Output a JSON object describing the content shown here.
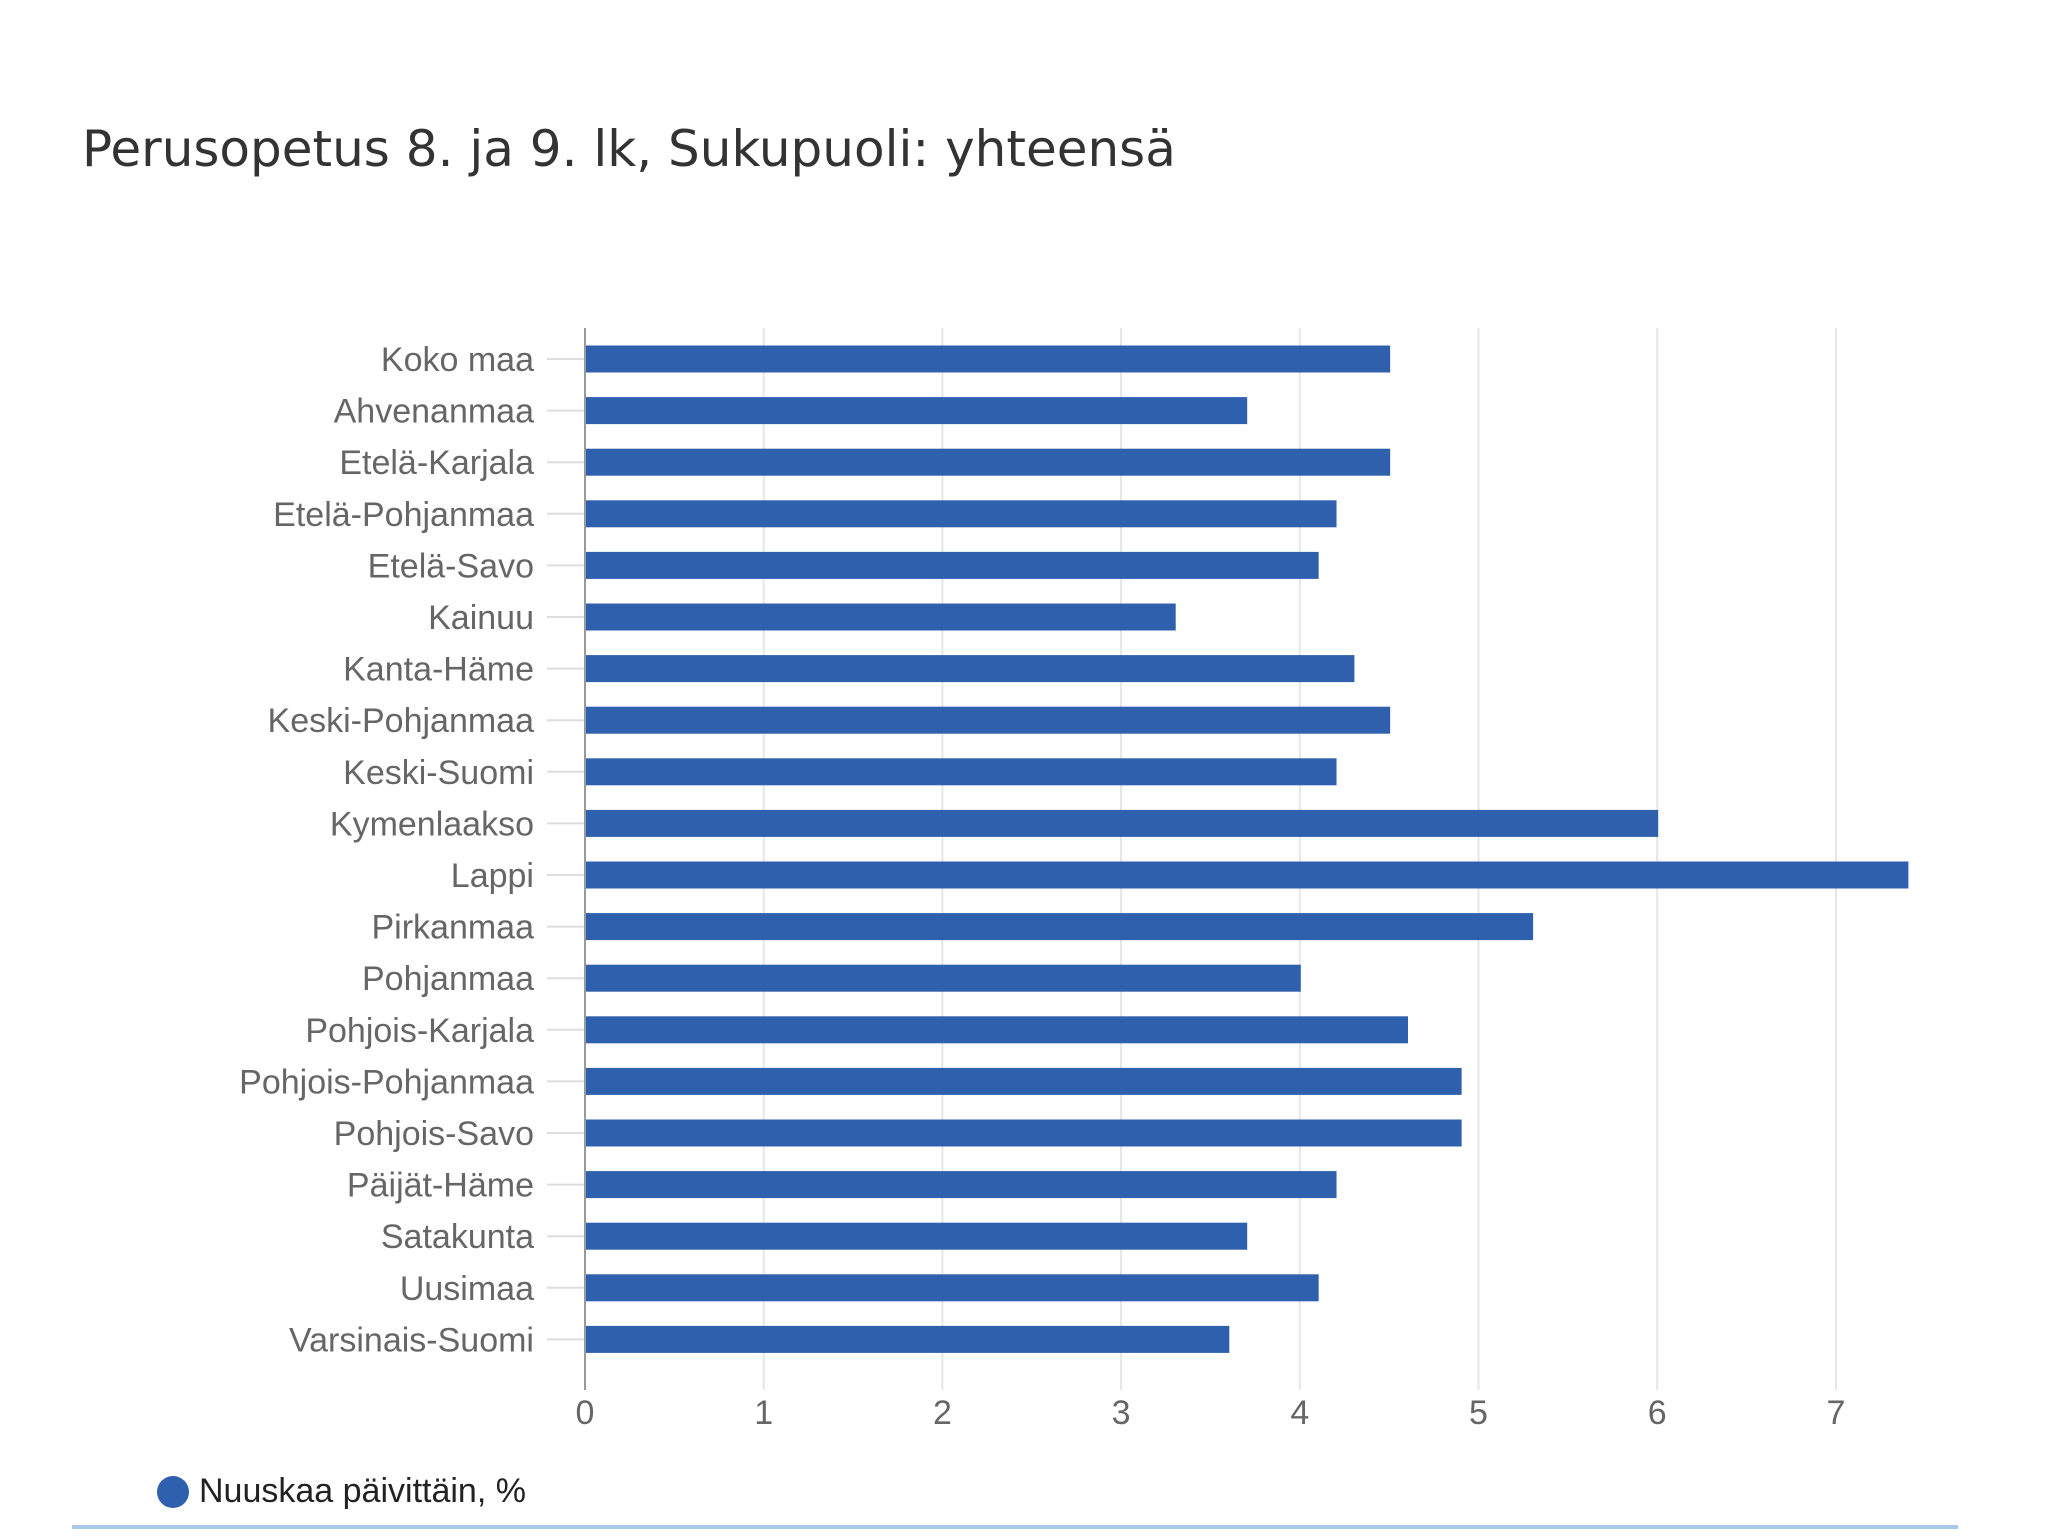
{
  "chart_data": {
    "type": "bar",
    "orientation": "horizontal",
    "title": "Perusopetus 8. ja 9. lk, Sukupuoli: yhteensä",
    "categories": [
      "Koko maa",
      "Ahvenanmaa",
      "Etelä-Karjala",
      "Etelä-Pohjanmaa",
      "Etelä-Savo",
      "Kainuu",
      "Kanta-Häme",
      "Keski-Pohjanmaa",
      "Keski-Suomi",
      "Kymenlaakso",
      "Lappi",
      "Pirkanmaa",
      "Pohjanmaa",
      "Pohjois-Karjala",
      "Pohjois-Pohjanmaa",
      "Pohjois-Savo",
      "Päijät-Häme",
      "Satakunta",
      "Uusimaa",
      "Varsinais-Suomi"
    ],
    "series": [
      {
        "name": "Nuuskaa päivittäin, %",
        "values": [
          4.5,
          3.7,
          4.5,
          4.2,
          4.1,
          3.3,
          4.3,
          4.5,
          4.2,
          6.0,
          7.4,
          5.3,
          4.0,
          4.6,
          4.9,
          4.9,
          4.2,
          3.7,
          4.1,
          3.6
        ]
      }
    ],
    "xlim": [
      0,
      7.5
    ],
    "xticks": [
      "0",
      "1",
      "2",
      "3",
      "4",
      "5",
      "6",
      "7"
    ],
    "grid": true,
    "legend": "bottom-left",
    "colors": {
      "bar": "#2f60ad",
      "grid": "#e6e6e6",
      "axis": "#999999"
    }
  }
}
